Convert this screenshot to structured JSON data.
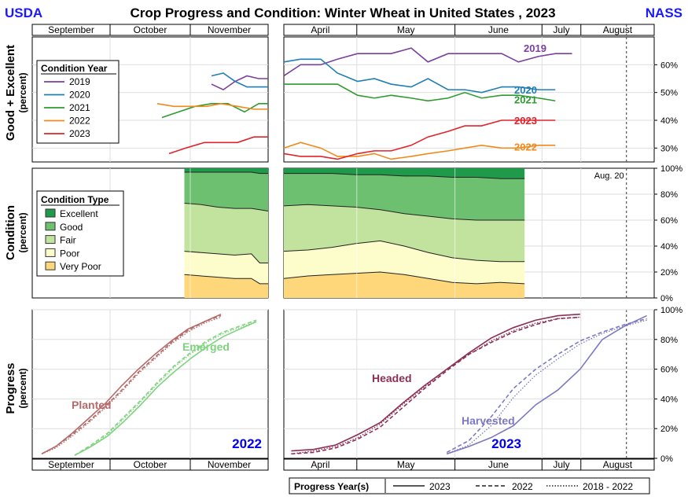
{
  "header": {
    "left_brand": "USDA",
    "right_brand": "NASS",
    "title": "Crop Progress and Condition: Winter Wheat in United States , 2023"
  },
  "months_fall": [
    "September",
    "October",
    "November"
  ],
  "months_spring": [
    "April",
    "May",
    "June",
    "July",
    "August"
  ],
  "reference_line_label": "Aug. 20",
  "colors": {
    "y2019": "#7b3f9e",
    "y2020": "#1f7fb4",
    "y2021": "#2e9b2e",
    "y2022": "#f08a1c",
    "y2023": "#e0242a",
    "excellent": "#1e9a4a",
    "good": "#6dc070",
    "fair": "#c2e39e",
    "poor": "#fdfccb",
    "very_poor": "#fdd77a",
    "planted": "#b56a6a",
    "emerged": "#7ed37e",
    "headed": "#8b2f55",
    "harvested": "#7c79c2",
    "progress_year_2022": "#0000ee",
    "progress_year_2023": "#0000ee"
  },
  "chart_data": [
    {
      "type": "line",
      "panel": "good_excellent",
      "ylabel": "Good + Excellent",
      "ylabel_unit": "(percent)",
      "y_ticks": [
        "30%",
        "40%",
        "50%",
        "60%"
      ],
      "ylim": [
        25,
        70
      ],
      "legend_title": "Condition Year",
      "legend_position": "left",
      "series": [
        {
          "name": "2019",
          "fall_x": [
            0.76,
            0.81,
            0.86,
            0.91,
            0.96,
            1.0
          ],
          "fall_y": [
            53,
            51,
            54,
            56,
            55,
            55
          ],
          "spring_x": [
            0.0,
            0.05,
            0.11,
            0.16,
            0.22,
            0.27,
            0.32,
            0.38,
            0.43,
            0.49,
            0.54,
            0.59,
            0.65,
            0.7,
            0.76,
            0.81,
            0.86
          ],
          "spring_y": [
            56,
            60,
            60,
            62,
            64,
            64,
            64,
            66,
            61,
            64,
            64,
            64,
            64,
            61,
            63,
            64,
            64
          ]
        },
        {
          "name": "2020",
          "fall_x": [
            0.76,
            0.81,
            0.86,
            0.91,
            0.96,
            1.0
          ],
          "fall_y": [
            56,
            57,
            54,
            52,
            52,
            52
          ],
          "spring_x": [
            0.0,
            0.05,
            0.11,
            0.16,
            0.22,
            0.27,
            0.32,
            0.38,
            0.43,
            0.49,
            0.54,
            0.59,
            0.65,
            0.7,
            0.76,
            0.81
          ],
          "spring_y": [
            61,
            62,
            62,
            57,
            54,
            55,
            53,
            52,
            55,
            51,
            51,
            50,
            52,
            52,
            51,
            51
          ]
        },
        {
          "name": "2021",
          "fall_x": [
            0.55,
            0.62,
            0.69,
            0.76,
            0.83,
            0.9,
            0.96,
            1.0
          ],
          "fall_y": [
            41,
            43,
            45,
            46,
            46,
            43,
            46,
            46
          ],
          "spring_x": [
            0.0,
            0.05,
            0.11,
            0.16,
            0.22,
            0.27,
            0.32,
            0.38,
            0.43,
            0.49,
            0.54,
            0.59,
            0.65,
            0.7,
            0.76,
            0.81
          ],
          "spring_y": [
            53,
            53,
            53,
            53,
            49,
            48,
            49,
            48,
            47,
            48,
            50,
            48,
            49,
            49,
            48,
            47
          ]
        },
        {
          "name": "2022",
          "fall_x": [
            0.53,
            0.6,
            0.67,
            0.74,
            0.8,
            0.87,
            0.94,
            1.0
          ],
          "fall_y": [
            46,
            45,
            45,
            45,
            46,
            45,
            44,
            44
          ],
          "spring_x": [
            0.0,
            0.05,
            0.11,
            0.16,
            0.22,
            0.27,
            0.32,
            0.38,
            0.43,
            0.49,
            0.54,
            0.59,
            0.65,
            0.7,
            0.76,
            0.81
          ],
          "spring_y": [
            30,
            32,
            30,
            27,
            27,
            28,
            26,
            27,
            28,
            29,
            30,
            31,
            30,
            30,
            31,
            31
          ]
        },
        {
          "name": "2023",
          "fall_x": [
            0.58,
            0.65,
            0.73,
            0.8,
            0.87,
            0.94,
            1.0
          ],
          "fall_y": [
            28,
            30,
            32,
            32,
            32,
            34,
            34
          ],
          "spring_x": [
            0.0,
            0.05,
            0.11,
            0.16,
            0.22,
            0.27,
            0.32,
            0.38,
            0.43,
            0.49,
            0.54,
            0.59,
            0.65,
            0.7,
            0.76,
            0.81
          ],
          "spring_y": [
            28,
            27,
            27,
            26,
            28,
            29,
            29,
            31,
            34,
            36,
            38,
            38,
            40,
            40,
            40,
            40
          ]
        }
      ],
      "end_labels": [
        "2019",
        "2020",
        "2021",
        "2023",
        "2022"
      ]
    },
    {
      "type": "area",
      "panel": "condition",
      "ylabel": "Condition",
      "ylabel_unit": "(percent)",
      "y_ticks": [
        "0%",
        "20%",
        "40%",
        "60%",
        "80%",
        "100%"
      ],
      "ylim": [
        0,
        100
      ],
      "legend_title": "Condition Type",
      "legend_position": "left",
      "categories": [
        "Excellent",
        "Good",
        "Fair",
        "Poor",
        "Very Poor"
      ],
      "fall_x": [
        0.0,
        0.2,
        0.4,
        0.6,
        0.8,
        0.9,
        1.0
      ],
      "fall_cumulative": {
        "very_poor": [
          18,
          17,
          16,
          15,
          15,
          11,
          11
        ],
        "poor": [
          36,
          35,
          34,
          33,
          34,
          27,
          27
        ],
        "fair": [
          73,
          72,
          70,
          69,
          69,
          68,
          67
        ],
        "good": [
          97,
          97,
          97,
          97,
          97,
          96,
          96
        ]
      },
      "spring_x": [
        0.0,
        0.1,
        0.2,
        0.3,
        0.4,
        0.5,
        0.6,
        0.7,
        0.8,
        0.9,
        1.0
      ],
      "spring_cumulative": {
        "very_poor": [
          15,
          17,
          18,
          19,
          20,
          18,
          15,
          12,
          11,
          12,
          11
        ],
        "poor": [
          36,
          37,
          39,
          42,
          44,
          40,
          35,
          31,
          29,
          28,
          28
        ],
        "fair": [
          71,
          72,
          71,
          70,
          68,
          65,
          63,
          61,
          60,
          60,
          60
        ],
        "good": [
          96,
          96,
          96,
          95,
          95,
          94,
          94,
          93,
          93,
          92,
          92
        ]
      }
    },
    {
      "type": "line",
      "panel": "progress",
      "ylabel": "Progress",
      "ylabel_unit": "(percent)",
      "y_ticks": [
        "0%",
        "20%",
        "40%",
        "60%",
        "80%",
        "100%"
      ],
      "ylim": [
        0,
        100
      ],
      "fall_year_label": "2022",
      "spring_year_label": "2023",
      "series": [
        {
          "name": "Planted",
          "panel_side": "fall",
          "x": [
            0.04,
            0.1,
            0.17,
            0.24,
            0.31,
            0.38,
            0.45,
            0.52,
            0.59,
            0.66,
            0.73,
            0.8
          ],
          "y_2023": [
            3,
            8,
            17,
            27,
            37,
            49,
            60,
            70,
            79,
            87,
            92,
            97
          ],
          "y_2022": [
            3,
            8,
            16,
            25,
            35,
            46,
            58,
            68,
            78,
            86,
            92,
            96
          ],
          "y_avg": [
            3,
            7,
            15,
            24,
            34,
            45,
            57,
            67,
            77,
            85,
            91,
            95
          ]
        },
        {
          "name": "Emerged",
          "panel_side": "fall",
          "x": [
            0.18,
            0.25,
            0.32,
            0.39,
            0.46,
            0.53,
            0.6,
            0.67,
            0.74,
            0.81,
            0.88,
            0.95
          ],
          "y_2023": [
            2,
            8,
            15,
            25,
            36,
            48,
            58,
            67,
            75,
            82,
            87,
            92
          ],
          "y_2022": [
            2,
            9,
            17,
            28,
            39,
            51,
            62,
            71,
            79,
            85,
            89,
            93
          ],
          "y_avg": [
            2,
            8,
            16,
            27,
            38,
            50,
            61,
            70,
            78,
            84,
            88,
            92
          ]
        },
        {
          "name": "Headed",
          "panel_side": "spring",
          "x": [
            0.02,
            0.08,
            0.14,
            0.2,
            0.26,
            0.32,
            0.38,
            0.44,
            0.5,
            0.56,
            0.62,
            0.68,
            0.74,
            0.8
          ],
          "y_2023": [
            5,
            6,
            9,
            16,
            24,
            37,
            49,
            60,
            71,
            81,
            88,
            93,
            96,
            97
          ],
          "y_2022": [
            3,
            4,
            7,
            13,
            21,
            34,
            47,
            59,
            70,
            78,
            85,
            90,
            94,
            95
          ],
          "y_avg": [
            3,
            5,
            8,
            14,
            23,
            36,
            48,
            60,
            70,
            79,
            86,
            91,
            94,
            95
          ]
        },
        {
          "name": "Harvested",
          "panel_side": "spring",
          "x": [
            0.44,
            0.5,
            0.56,
            0.62,
            0.68,
            0.74,
            0.8,
            0.86,
            0.92,
            0.98
          ],
          "y_2023": [
            3,
            8,
            14,
            22,
            36,
            46,
            60,
            80,
            89,
            96
          ],
          "y_2022": [
            4,
            12,
            28,
            47,
            60,
            70,
            79,
            85,
            90,
            94
          ],
          "y_avg": [
            3,
            9,
            22,
            41,
            56,
            67,
            77,
            84,
            89,
            93
          ]
        }
      ],
      "legend_title": "Progress Year(s)",
      "legend_entries": [
        "2023",
        "2022",
        "2018 - 2022"
      ],
      "legend_position": "bottom"
    }
  ]
}
